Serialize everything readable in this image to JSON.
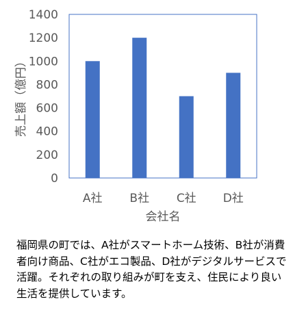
{
  "chart_data": {
    "type": "bar",
    "categories": [
      "A社",
      "B社",
      "C社",
      "D社"
    ],
    "series": [
      {
        "values": [
          1000,
          1200,
          700,
          900
        ]
      }
    ],
    "xlabel": "会社名",
    "ylabel": "売上額（億円）",
    "ylim": [
      0,
      1400
    ],
    "yticks": [
      0,
      200,
      400,
      600,
      800,
      1000,
      1200,
      1400
    ],
    "grid": false,
    "colors": {
      "bar": "#4472C4",
      "frame": "#4472C4",
      "text": "#595959"
    }
  },
  "caption": "福岡県の町では、A社がスマートホーム技術、B社が消費者向け商品、C社がエコ製品、D社がデジタルサービスで活躍。それぞれの取り組みが町を支え、住民により良い生活を提供しています。"
}
